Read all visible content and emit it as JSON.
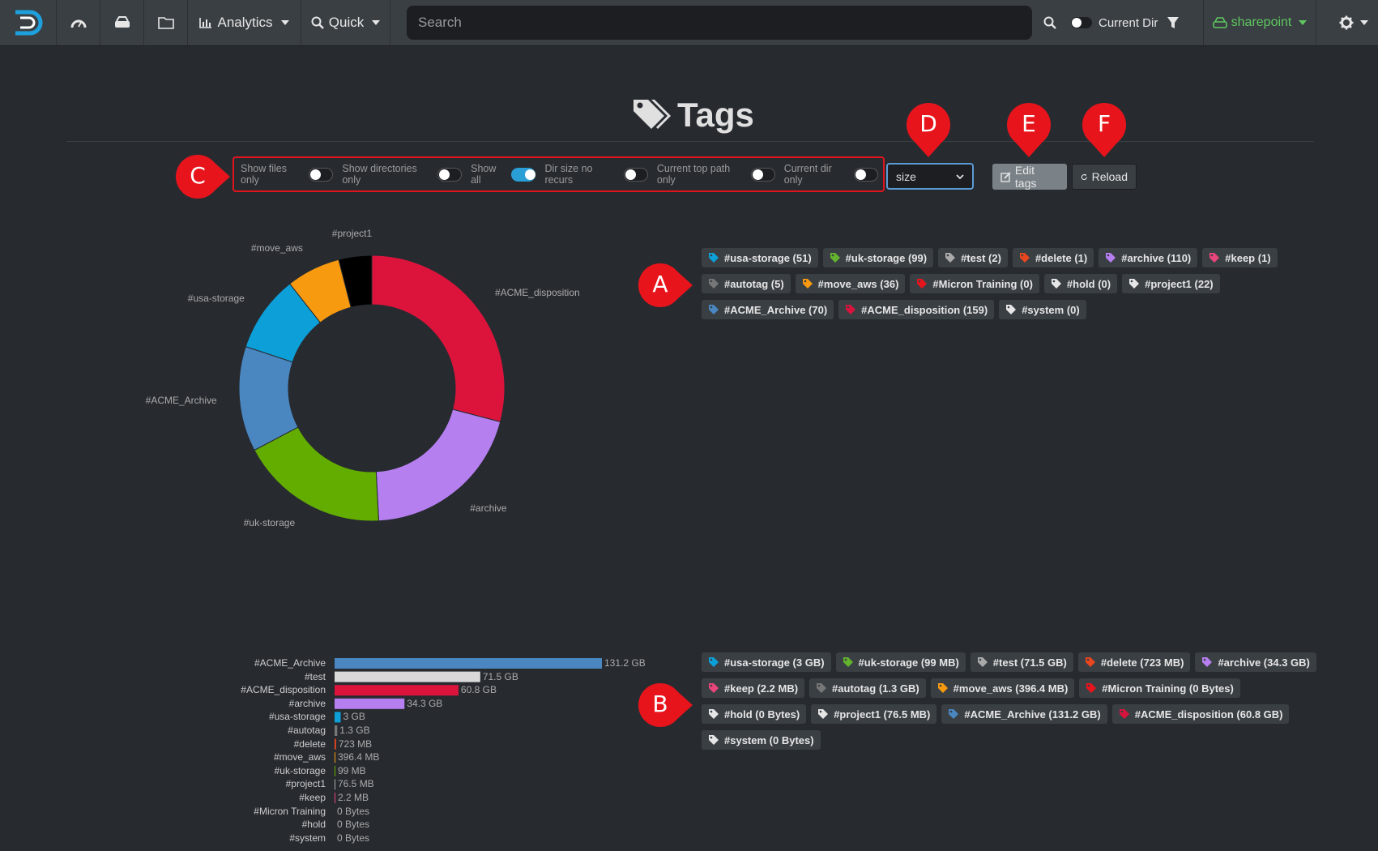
{
  "nav": {
    "analytics_label": "Analytics",
    "quick_label": "Quick",
    "search_placeholder": "Search",
    "current_dir_label": "Current Dir",
    "index_label": "sharepoint"
  },
  "page": {
    "title": "Tags"
  },
  "toggles": [
    {
      "label": "Show files only",
      "on": false
    },
    {
      "label": "Show directories only",
      "on": false
    },
    {
      "label": "Show all",
      "on": true
    },
    {
      "label": "Dir size no recurs",
      "on": false
    },
    {
      "label": "Current top path only",
      "on": false
    },
    {
      "label": "Current dir only",
      "on": false
    }
  ],
  "select": {
    "value": "size"
  },
  "buttons": {
    "edit_label": "Edit tags",
    "reload_label": "Reload"
  },
  "markers": [
    "A",
    "B",
    "C",
    "D",
    "E",
    "F"
  ],
  "count_tags": [
    {
      "label": "#usa-storage (51)",
      "color": "#0d9fd8"
    },
    {
      "label": "#uk-storage (99)",
      "color": "#63b32e"
    },
    {
      "label": "#test (2)",
      "color": "#aaaaaa"
    },
    {
      "label": "#delete (1)",
      "color": "#e8461e"
    },
    {
      "label": "#archive (110)",
      "color": "#b57ff0"
    },
    {
      "label": "#keep (1)",
      "color": "#e8457a"
    },
    {
      "label": "#autotag (5)",
      "color": "#777777"
    },
    {
      "label": "#move_aws (36)",
      "color": "#f89a10"
    },
    {
      "label": "#Micron Training (0)",
      "color": "#e8141c"
    },
    {
      "label": "#hold (0)",
      "color": "#e6e6e6"
    },
    {
      "label": "#project1 (22)",
      "color": "#e6e6e6"
    },
    {
      "label": "#ACME_Archive (70)",
      "color": "#4a86c0"
    },
    {
      "label": "#ACME_disposition (159)",
      "color": "#d8143c"
    },
    {
      "label": "#system (0)",
      "color": "#e6e6e6"
    }
  ],
  "size_tags": [
    {
      "label": "#usa-storage (3 GB)",
      "color": "#0d9fd8"
    },
    {
      "label": "#uk-storage (99 MB)",
      "color": "#63b32e"
    },
    {
      "label": "#test (71.5 GB)",
      "color": "#aaaaaa"
    },
    {
      "label": "#delete (723 MB)",
      "color": "#e8461e"
    },
    {
      "label": "#archive (34.3 GB)",
      "color": "#b57ff0"
    },
    {
      "label": "#keep (2.2 MB)",
      "color": "#e8457a"
    },
    {
      "label": "#autotag (1.3 GB)",
      "color": "#777777"
    },
    {
      "label": "#move_aws (396.4 MB)",
      "color": "#f89a10"
    },
    {
      "label": "#Micron Training (0 Bytes)",
      "color": "#e8141c"
    },
    {
      "label": "#hold (0 Bytes)",
      "color": "#e6e6e6"
    },
    {
      "label": "#project1 (76.5 MB)",
      "color": "#e6e6e6"
    },
    {
      "label": "#ACME_Archive (131.2 GB)",
      "color": "#4a86c0"
    },
    {
      "label": "#ACME_disposition (60.8 GB)",
      "color": "#d8143c"
    },
    {
      "label": "#system (0 Bytes)",
      "color": "#e6e6e6"
    }
  ],
  "chart_data": [
    {
      "type": "pie",
      "categories": [
        "#ACME_disposition",
        "#archive",
        "#uk-storage",
        "#ACME_Archive",
        "#usa-storage",
        "#move_aws",
        "#project1"
      ],
      "values": [
        159,
        110,
        99,
        70,
        51,
        36,
        22
      ],
      "colors": [
        "#dc143c",
        "#b57ff0",
        "#63ad00",
        "#4a86c0",
        "#0d9fd8",
        "#f89a10",
        "#000000"
      ],
      "donut": true
    },
    {
      "type": "bar",
      "orientation": "horizontal",
      "categories": [
        "#ACME_Archive",
        "#test",
        "#ACME_disposition",
        "#archive",
        "#usa-storage",
        "#autotag",
        "#delete",
        "#move_aws",
        "#uk-storage",
        "#project1",
        "#keep",
        "#Micron Training",
        "#hold",
        "#system"
      ],
      "values_gb": [
        131.2,
        71.5,
        60.8,
        34.3,
        3,
        1.3,
        0.723,
        0.3964,
        0.099,
        0.0765,
        0.0022,
        0,
        0,
        0
      ],
      "value_labels": [
        "131.2 GB",
        "71.5 GB",
        "60.8 GB",
        "34.3 GB",
        "3 GB",
        "1.3 GB",
        "723 MB",
        "396.4 MB",
        "99 MB",
        "76.5 MB",
        "2.2 MB",
        "0 Bytes",
        "0 Bytes",
        "0 Bytes"
      ],
      "colors": [
        "#4a86c0",
        "#d9d9d9",
        "#dc143c",
        "#b57ff0",
        "#0d9fd8",
        "#777777",
        "#e8461e",
        "#f89a10",
        "#63ad00",
        "#aaaaaa",
        "#e8457a",
        "#e8141c",
        "#aaaaaa",
        "#aaaaaa"
      ]
    }
  ]
}
